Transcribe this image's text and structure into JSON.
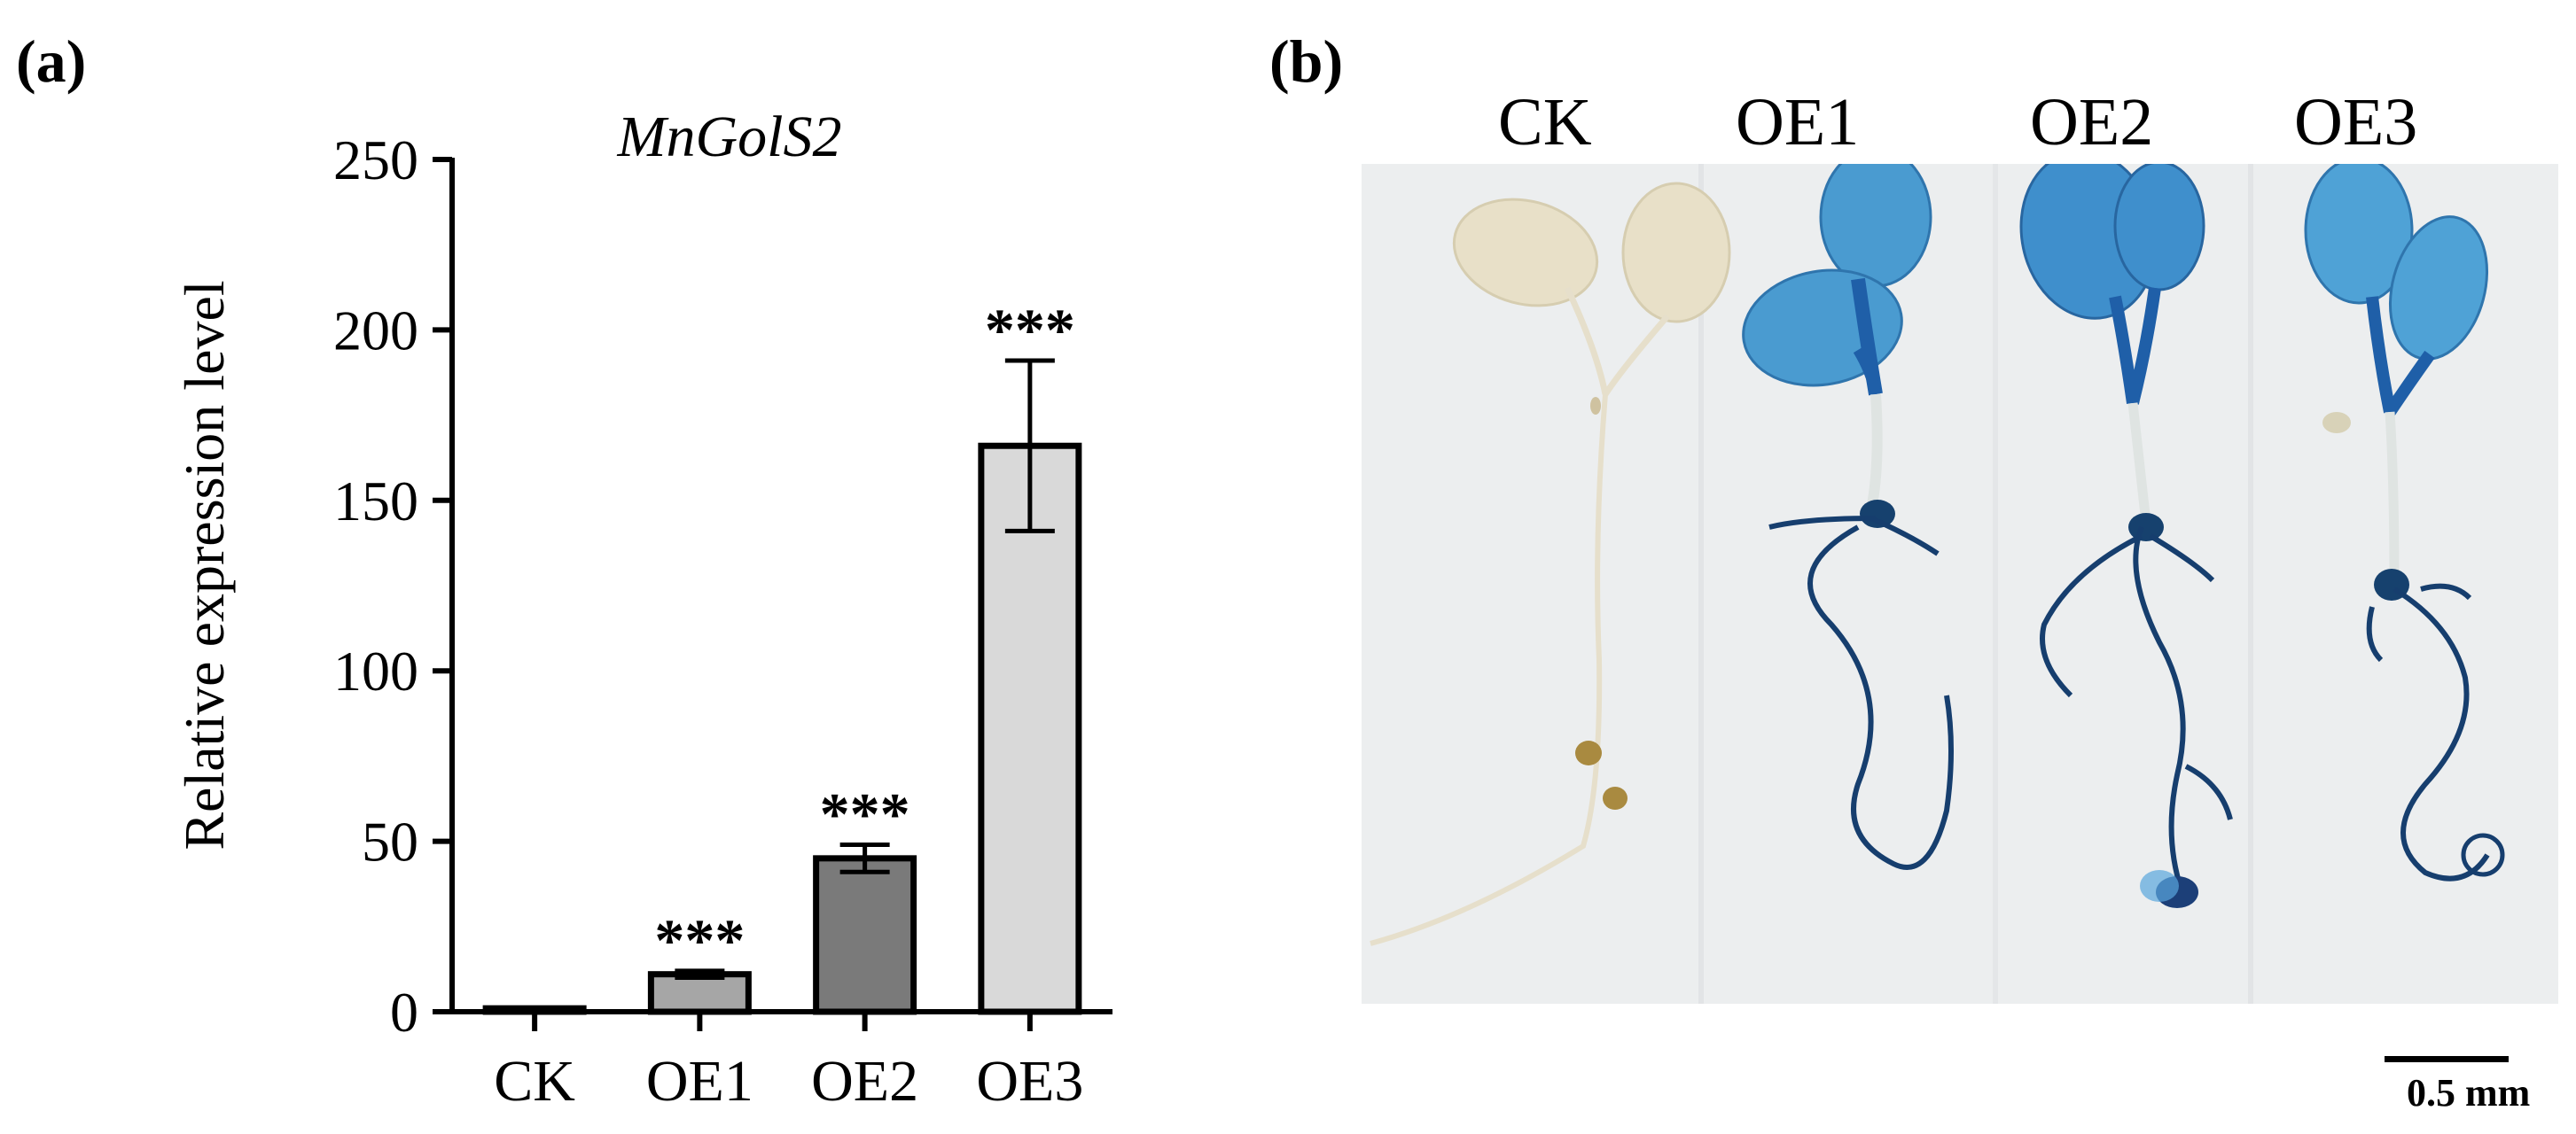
{
  "panels": {
    "a": "(a)",
    "b": "(b)"
  },
  "chart_data": {
    "type": "bar",
    "title": "MnGolS2",
    "xlabel": "",
    "ylabel": "Relative expression level",
    "categories": [
      "CK",
      "OE1",
      "OE2",
      "OE3"
    ],
    "values": [
      1,
      11,
      45,
      166
    ],
    "errors": [
      0,
      1,
      4,
      25
    ],
    "significance": [
      "",
      "***",
      "***",
      "***"
    ],
    "ylim": [
      0,
      250
    ],
    "yticks": [
      0,
      50,
      100,
      150,
      200,
      250
    ],
    "bar_colors": [
      "#ffffff",
      "#a6a6a6",
      "#7a7a7a",
      "#d9d9d9"
    ],
    "grid": false,
    "legend": "none"
  },
  "photo": {
    "labels": [
      "CK",
      "OE1",
      "OE2",
      "OE3"
    ],
    "scale_bar_text": "0.5 mm",
    "stain_color": "#1f5fa8",
    "background_color": "#eceeef"
  }
}
